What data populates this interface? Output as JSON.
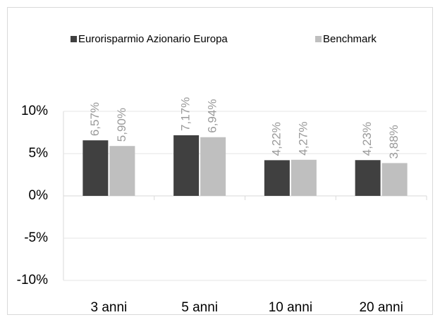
{
  "chart_data": {
    "type": "bar",
    "categories": [
      "3 anni",
      "5 anni",
      "10 anni",
      "20 anni"
    ],
    "series": [
      {
        "name": "Eurorisparmio Azionario Europa",
        "color": "#404040",
        "values": [
          6.57,
          7.17,
          4.22,
          4.23
        ],
        "value_labels": [
          "6,57%",
          "7,17%",
          "4,22%",
          "4,23%"
        ]
      },
      {
        "name": "Benchmark",
        "color": "#bfbfbf",
        "values": [
          5.9,
          6.94,
          4.27,
          3.88
        ],
        "value_labels": [
          "5,90%",
          "6,94%",
          "4,27%",
          "3,88%"
        ]
      }
    ],
    "ylim": [
      -10,
      10
    ],
    "yticks": [
      {
        "value": -10,
        "label": "-10%"
      },
      {
        "value": -5,
        "label": "-5%"
      },
      {
        "value": 0,
        "label": "0%"
      },
      {
        "value": 5,
        "label": "5%"
      },
      {
        "value": 10,
        "label": "10%"
      }
    ],
    "grid": true,
    "legend": "top"
  }
}
